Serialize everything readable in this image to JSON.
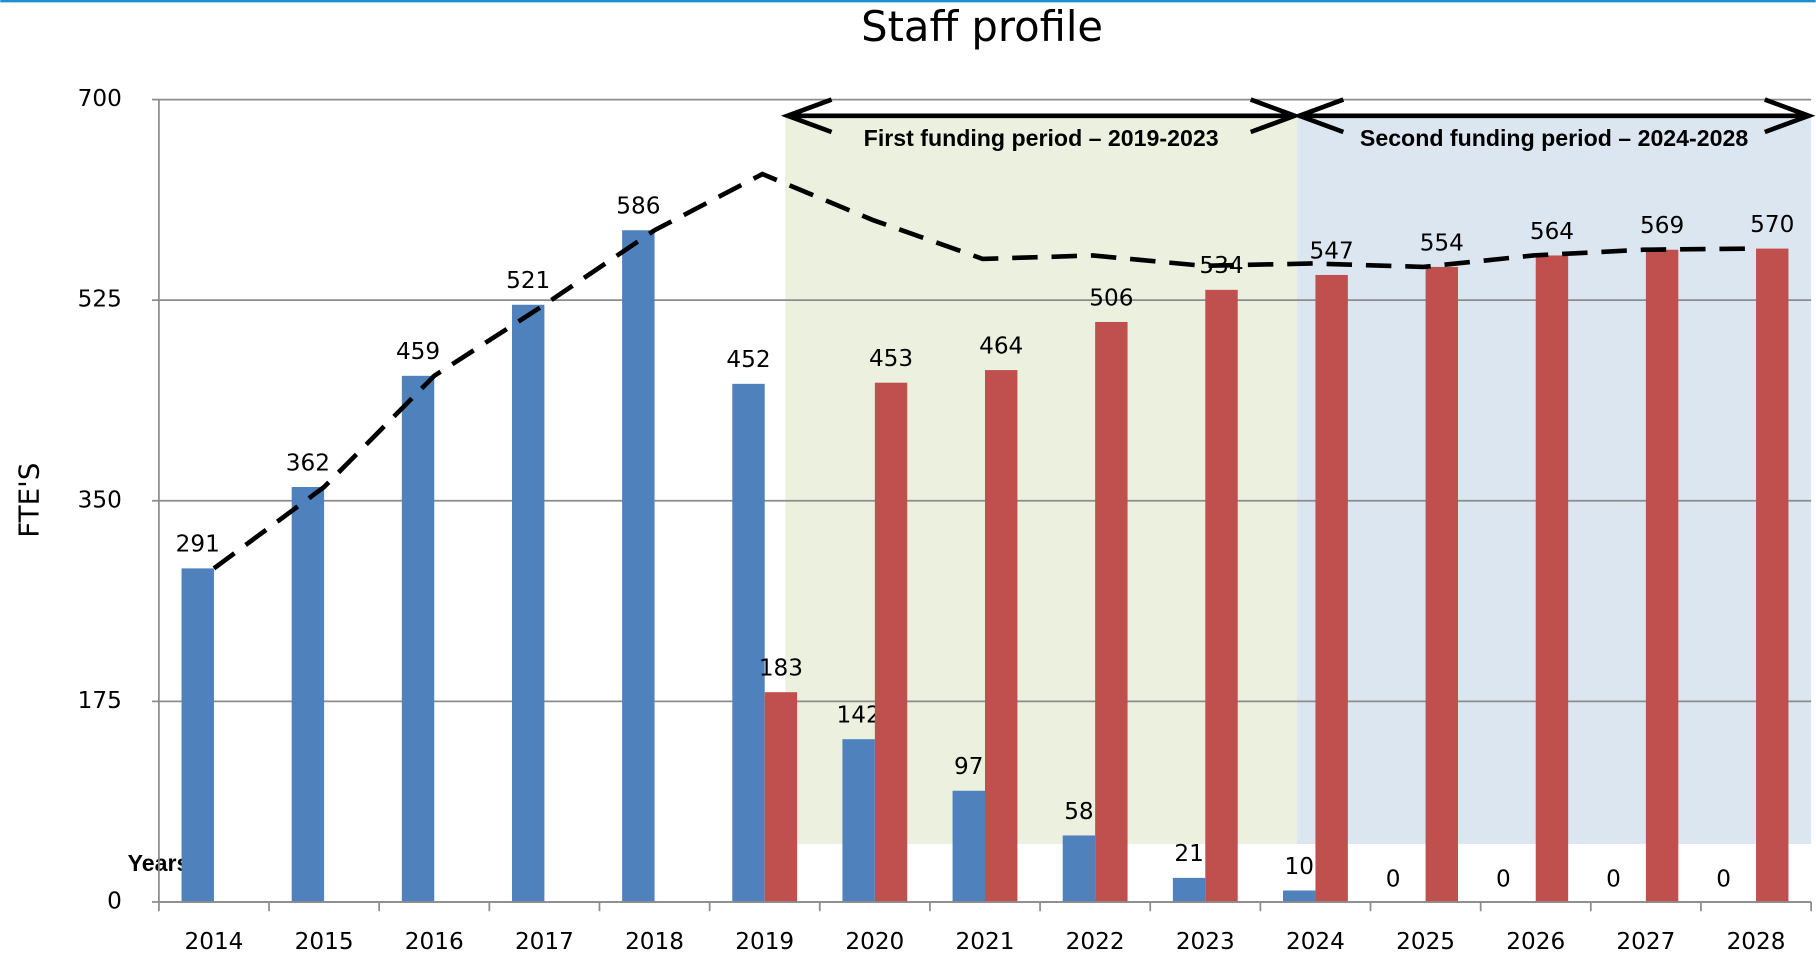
{
  "chart_data": {
    "type": "bar",
    "title": "Staff profile",
    "ylabel": "FTE'S",
    "xlabel": "Years",
    "categories": [
      "2014",
      "2015",
      "2016",
      "2017",
      "2018",
      "2019",
      "2020",
      "2021",
      "2022",
      "2023",
      "2024",
      "2025",
      "2026",
      "2027",
      "2028"
    ],
    "series": [
      {
        "color": "#4f81bd",
        "values": [
          291,
          362,
          459,
          521,
          586,
          452,
          142,
          97,
          58,
          21,
          10,
          0,
          0,
          0,
          0
        ]
      },
      {
        "color": "#c0504d",
        "values": [
          null,
          null,
          null,
          null,
          null,
          183,
          453,
          464,
          506,
          534,
          547,
          554,
          564,
          569,
          570
        ]
      }
    ],
    "total": {
      "color": "#000000",
      "values": [
        291,
        362,
        459,
        521,
        586,
        635,
        595,
        561,
        564,
        555,
        557,
        554,
        564,
        569,
        570
      ]
    },
    "periods": [
      {
        "label": "First funding period – 2019-2023",
        "color": "#ebf1de"
      },
      {
        "label": "Second funding period – 2024-2028",
        "color": "#dce6f1"
      }
    ],
    "ylim": [
      0,
      700
    ],
    "yticks": [
      0,
      175,
      350,
      525,
      700
    ],
    "grid": true
  }
}
